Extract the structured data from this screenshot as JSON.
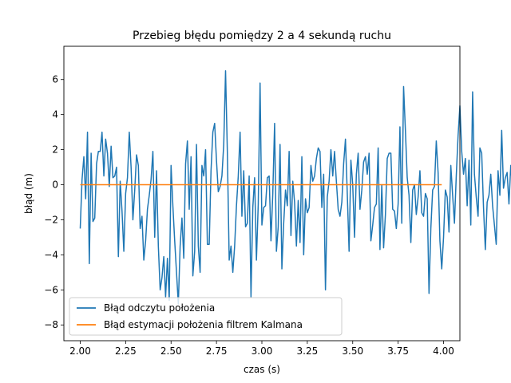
{
  "chart_data": {
    "type": "line",
    "title": "Przebieg błędu pomiędzy 2 a 4 sekundą ruchu",
    "xlabel": "czas (s)",
    "ylabel": "błąd (m)",
    "xlim": [
      1.91,
      4.09
    ],
    "ylim": [
      -8.9,
      7.9
    ],
    "x_ticks": [
      2.0,
      2.25,
      2.5,
      2.75,
      3.0,
      3.25,
      3.5,
      3.75,
      4.0
    ],
    "x_tick_labels": [
      "2.00",
      "2.25",
      "2.50",
      "2.75",
      "3.00",
      "3.25",
      "3.50",
      "3.75",
      "4.00"
    ],
    "y_ticks": [
      -8,
      -6,
      -4,
      -2,
      0,
      2,
      4,
      6
    ],
    "y_tick_labels": [
      "−8",
      "−6",
      "−4",
      "−2",
      "0",
      "2",
      "4",
      "6"
    ],
    "grid": false,
    "legend_position": "lower-left",
    "series": [
      {
        "name": "Błąd odczytu położenia",
        "color": "#1f77b4",
        "x_start": 2.0,
        "x_step": 0.01,
        "values": [
          -2.5,
          0.3,
          1.6,
          -0.8,
          3.0,
          -4.5,
          1.8,
          -2.1,
          -1.9,
          1.2,
          1.9,
          1.9,
          3.0,
          0.5,
          2.6,
          1.8,
          -0.1,
          2.2,
          0.4,
          0.5,
          1.0,
          -4.1,
          0.2,
          -1.5,
          -3.8,
          -0.5,
          0.4,
          3.0,
          1.0,
          -2.0,
          -0.3,
          1.7,
          1.1,
          -2.5,
          -1.8,
          -4.3,
          -3.2,
          -1.4,
          -0.6,
          0.3,
          1.9,
          -3.0,
          0.8,
          -3.5,
          -6.0,
          -5.3,
          -4.1,
          -6.4,
          -4.2,
          -6.6,
          1.1,
          -1.2,
          -3.2,
          -5.0,
          -6.8,
          -3.5,
          -1.9,
          -4.2,
          1.2,
          2.5,
          -1.4,
          1.6,
          -5.2,
          -3.8,
          2.3,
          -3.5,
          -5.0,
          1.1,
          0.5,
          2.0,
          -3.4,
          -3.4,
          0.8,
          3.0,
          3.5,
          1.4,
          -0.4,
          -0.1,
          0.5,
          2.3,
          6.5,
          1.8,
          -4.3,
          -3.5,
          -5.0,
          -3.5,
          -1.2,
          0.5,
          3.0,
          -1.8,
          0.8,
          -2.4,
          -2.2,
          0.5,
          -6.4,
          -1.3,
          0.4,
          -4.3,
          -1.1,
          5.8,
          -2.3,
          -1.3,
          -1.2,
          0.4,
          0.5,
          -3.2,
          -0.5,
          3.5,
          -3.8,
          -2.4,
          2.3,
          -4.8,
          -2.2,
          -0.3,
          -1.2,
          1.9,
          -2.9,
          0.2,
          -1.0,
          -3.5,
          -0.9,
          -3.3,
          1.6,
          -4.0,
          -0.8,
          -1.6,
          -1.3,
          1.1,
          0.2,
          0.5,
          1.5,
          2.1,
          1.9,
          -1.3,
          0.6,
          -6.0,
          -0.7,
          0.2,
          2.0,
          0.5,
          1.9,
          0.2,
          -1.4,
          -1.8,
          -1.0,
          1.2,
          2.6,
          -0.5,
          -3.8,
          1.4,
          0.0,
          -3.0,
          0.6,
          1.8,
          -1.4,
          -0.3,
          1.3,
          1.6,
          0.6,
          1.8,
          -3.2,
          -2.3,
          -1.3,
          -1.1,
          2.1,
          -3.7,
          0.0,
          -3.6,
          -1.7,
          1.5,
          1.8,
          1.8,
          -1.4,
          -1.5,
          -2.5,
          -1.1,
          3.3,
          -2.2,
          5.6,
          3.1,
          0.4,
          -0.6,
          -3.3,
          -0.3,
          0.0,
          -1.7,
          -0.7,
          0.8,
          -1.6,
          -1.8,
          -0.5,
          -0.8,
          -6.2,
          -2.5,
          -0.3,
          -0.1,
          2.5,
          0.7,
          -3.2,
          -4.8,
          -3.0,
          -0.3,
          -0.7,
          -2.7,
          1.1,
          -0.6,
          -2.2,
          0.5,
          2.8,
          4.5,
          1.9,
          0.6,
          1.5,
          -1.2,
          1.4,
          -2.3,
          5.3,
          0.6,
          -0.7,
          -1.8,
          2.1,
          1.8,
          -1.3,
          -3.7,
          -1.0,
          -0.6,
          0.6,
          -1.2,
          -2.3,
          -3.4,
          0.8,
          -0.6,
          3.1,
          -0.2,
          0.4,
          0.7,
          -1.1,
          1.1,
          -0.2,
          -2.6,
          -3.0,
          2.0,
          -0.4,
          4.6,
          -0.8,
          0.1,
          -1.3,
          -3.0,
          -3.2,
          -1.6,
          -1.7,
          -2.3,
          -0.7,
          -7.8,
          -0.8,
          -3.0,
          -1.8,
          0.6,
          7.2,
          1.3,
          0.2,
          -1.9,
          -2.6,
          4.5,
          4.3,
          -1.7,
          -1.5,
          1.4,
          0.1,
          0.5,
          1.3,
          0.6,
          1.5,
          1.2,
          -0.5,
          -1.3,
          -2.1,
          -3.0,
          -4.7,
          -5.4,
          -6.5,
          -5.9,
          -4.3,
          -5.5,
          -3.2,
          -1.8,
          -2.0,
          -2.4,
          -1.6,
          -3.2,
          -0.7,
          1.8,
          1.2,
          0.1,
          -3.2,
          -2.7,
          -1.9,
          -3.5,
          -5.4,
          -4.5,
          -2.0,
          2.3,
          0.4,
          0.8,
          -0.4,
          -0.3,
          -1.6,
          3.3,
          -1.9,
          -3.9,
          -2.8,
          -1.8,
          -0.2,
          -1.0,
          -4.5,
          -6.0,
          -1.9,
          -5.4,
          -2.2,
          -3.7,
          -1.4,
          -2.6,
          -1.1,
          -0.7,
          -4.1,
          -1.6,
          -2.6,
          -4.4,
          -7.9,
          -8.2,
          -2.6,
          -3.0,
          -1.0,
          1.3,
          0.9,
          -0.3,
          -1.0,
          -0.9,
          -0.5,
          -2.2,
          -4.2,
          -0.6,
          -1.7,
          -2.9,
          -3.3,
          -1.9,
          -0.5,
          0.9,
          0.4,
          -2.5,
          -6.2,
          -3.5,
          -1.5,
          -1.0
        ]
      },
      {
        "name": "Błąd estymacji położenia filtrem Kalmana",
        "color": "#ff7f0e",
        "x": [
          2.0,
          3.99
        ],
        "values": [
          0.0,
          0.0
        ]
      }
    ]
  }
}
